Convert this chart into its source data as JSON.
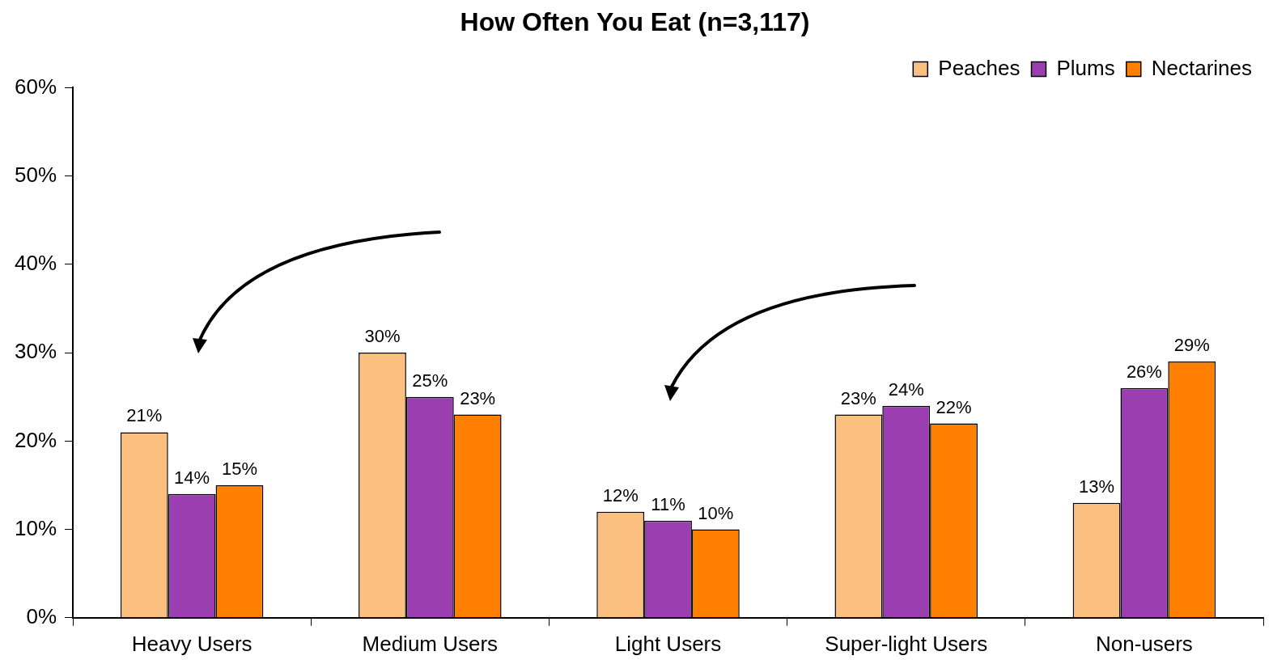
{
  "chart_data": {
    "type": "bar",
    "title": "How Often You Eat (n=3,117)",
    "categories": [
      "Heavy Users",
      "Medium Users",
      "Light Users",
      "Super-light Users",
      "Non-users"
    ],
    "series": [
      {
        "name": "Peaches",
        "color": "#fbc080",
        "values": [
          21,
          30,
          12,
          23,
          13
        ],
        "value_labels": [
          "21%",
          "30%",
          "12%",
          "23%",
          "13%"
        ]
      },
      {
        "name": "Plums",
        "color": "#9b3fb0",
        "values": [
          14,
          25,
          11,
          24,
          26
        ],
        "value_labels": [
          "14%",
          "25%",
          "11%",
          "24%",
          "26%"
        ]
      },
      {
        "name": "Nectarines",
        "color": "#ff8000",
        "values": [
          15,
          23,
          10,
          22,
          29
        ],
        "value_labels": [
          "15%",
          "23%",
          "10%",
          "22%",
          "29%"
        ]
      }
    ],
    "ylim": [
      0,
      60
    ],
    "yticks": [
      {
        "value": 0,
        "label": "0%"
      },
      {
        "value": 10,
        "label": "10%"
      },
      {
        "value": 20,
        "label": "20%"
      },
      {
        "value": 30,
        "label": "30%"
      },
      {
        "value": 40,
        "label": "40%"
      },
      {
        "value": 50,
        "label": "50%"
      },
      {
        "value": 60,
        "label": "60%"
      }
    ],
    "grid": false,
    "legend": "top right"
  }
}
